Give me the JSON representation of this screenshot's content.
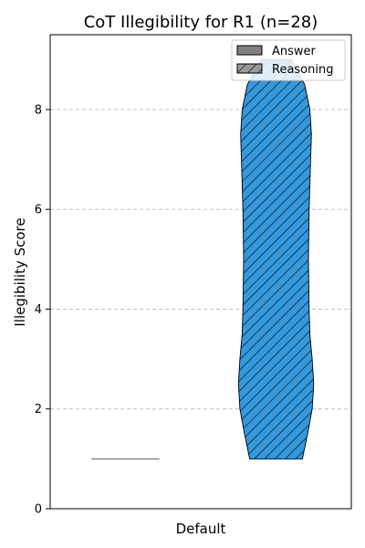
{
  "chart_data": {
    "type": "violin",
    "title": "CoT Illegibility for R1 (n=28)",
    "xlabel": "Default",
    "ylabel": "Illegibility Score",
    "ylim": [
      0,
      9.5
    ],
    "yticks": [
      "0",
      "2",
      "4",
      "6",
      "8"
    ],
    "grid": "y-dashed",
    "legend_position": "top-right",
    "legend": [
      {
        "name": "Answer",
        "fill": "#808080",
        "hatch": false
      },
      {
        "name": "Reasoning",
        "fill": "#999999",
        "hatch": true
      }
    ],
    "series": [
      {
        "name": "Answer",
        "min": 1.0,
        "max": 1.0,
        "color": "#808080",
        "profile": [
          [
            1.0,
            0.5
          ]
        ]
      },
      {
        "name": "Reasoning",
        "min": 1.0,
        "max": 9.0,
        "color": "#3498db",
        "hatch": true,
        "profile": [
          [
            1.0,
            0.35
          ],
          [
            1.5,
            0.42
          ],
          [
            2.0,
            0.48
          ],
          [
            2.5,
            0.5
          ],
          [
            3.0,
            0.48
          ],
          [
            3.5,
            0.45
          ],
          [
            4.0,
            0.44
          ],
          [
            5.0,
            0.43
          ],
          [
            6.0,
            0.44
          ],
          [
            7.0,
            0.46
          ],
          [
            7.5,
            0.47
          ],
          [
            8.0,
            0.45
          ],
          [
            8.5,
            0.38
          ],
          [
            9.0,
            0.2
          ]
        ]
      }
    ]
  }
}
